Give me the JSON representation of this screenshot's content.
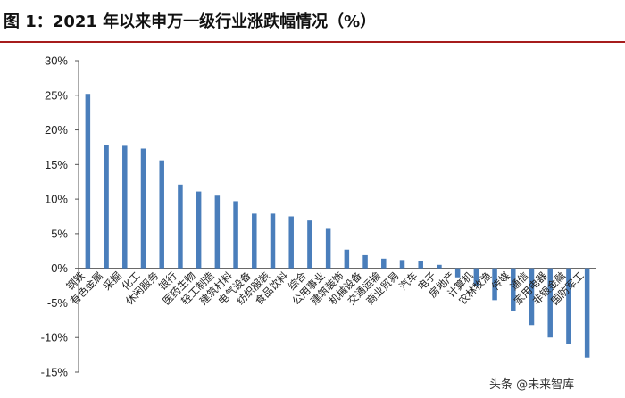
{
  "title": "图 1：2021 年以来申万一级行业涨跌幅情况（%）",
  "watermark": "头条 @未来智库",
  "chart_data": {
    "type": "bar",
    "ylim": [
      -15,
      30
    ],
    "yticks": [
      -15,
      -10,
      -5,
      0,
      5,
      10,
      15,
      20,
      25,
      30
    ],
    "ytick_labels": [
      "-15%",
      "-10%",
      "-5%",
      "0%",
      "5%",
      "10%",
      "15%",
      "20%",
      "25%",
      "30%"
    ],
    "grid": false,
    "bar_color": "#4a7ebb",
    "categories": [
      "钢铁",
      "有色金属",
      "采掘",
      "化工",
      "休闲服务",
      "银行",
      "医药生物",
      "轻工制造",
      "建筑材料",
      "电气设备",
      "纺织服装",
      "食品饮料",
      "综合",
      "公用事业",
      "建筑装饰",
      "机械设备",
      "交通运输",
      "商业贸易",
      "汽车",
      "电子",
      "房地产",
      "计算机",
      "农林牧渔",
      "传媒",
      "通信",
      "家用电器",
      "非银金融",
      "国防军工"
    ],
    "values": [
      25.2,
      17.8,
      17.7,
      17.3,
      15.6,
      12.1,
      11.1,
      10.5,
      9.7,
      7.9,
      7.9,
      7.5,
      6.9,
      5.7,
      2.7,
      1.9,
      1.4,
      1.2,
      1.0,
      0.5,
      -1.3,
      -2.5,
      -4.6,
      -6.1,
      -8.2,
      -10.0,
      -10.9,
      -12.9
    ]
  }
}
